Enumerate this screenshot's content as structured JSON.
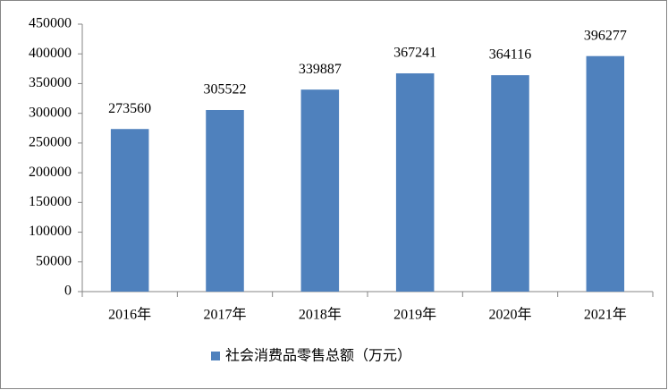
{
  "chart_data": {
    "type": "bar",
    "categories": [
      "2016年",
      "2017年",
      "2018年",
      "2019年",
      "2020年",
      "2021年"
    ],
    "series": [
      {
        "name": "社会消费品零售总额（万元）",
        "color": "#4f81bd",
        "values": [
          273560,
          305522,
          339887,
          367241,
          364116,
          396277
        ]
      }
    ],
    "ylim": [
      0,
      450000
    ],
    "yticks": [
      0,
      50000,
      100000,
      150000,
      200000,
      250000,
      300000,
      350000,
      400000,
      450000
    ],
    "grid": false,
    "data_labels": true,
    "legend": "bottom"
  }
}
